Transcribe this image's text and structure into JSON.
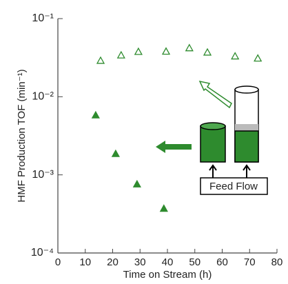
{
  "chart_data": {
    "type": "scatter",
    "xlabel": "Time on Stream (h)",
    "ylabel": "HMF Production TOF (min⁻¹)",
    "xlim": [
      0,
      80
    ],
    "xticks": [
      0,
      10,
      20,
      30,
      40,
      50,
      60,
      70,
      80
    ],
    "ylim": [
      0.0001,
      0.1
    ],
    "yticks": [
      {
        "value": 0.1,
        "label": "10⁻¹"
      },
      {
        "value": 0.01,
        "label": "10⁻²"
      },
      {
        "value": 0.001,
        "label": "10⁻³"
      },
      {
        "value": 0.0001,
        "label": "10⁻⁴"
      }
    ],
    "log_y": true,
    "series": [
      {
        "marker": "open-triangle",
        "color": "#2e8b2e",
        "x": [
          15.6,
          23.1,
          29.4,
          39.5,
          48.0,
          54.6,
          64.7,
          73.0
        ],
        "values": [
          0.029,
          0.034,
          0.0377,
          0.038,
          0.042,
          0.037,
          0.033,
          0.031
        ]
      },
      {
        "marker": "filled-triangle",
        "color": "#2e8b2e",
        "x": [
          13.8,
          21.1,
          28.9,
          38.7
        ],
        "values": [
          0.0058,
          0.00186,
          0.00076,
          0.00037
        ]
      }
    ],
    "annotation": "Feed Flow"
  }
}
